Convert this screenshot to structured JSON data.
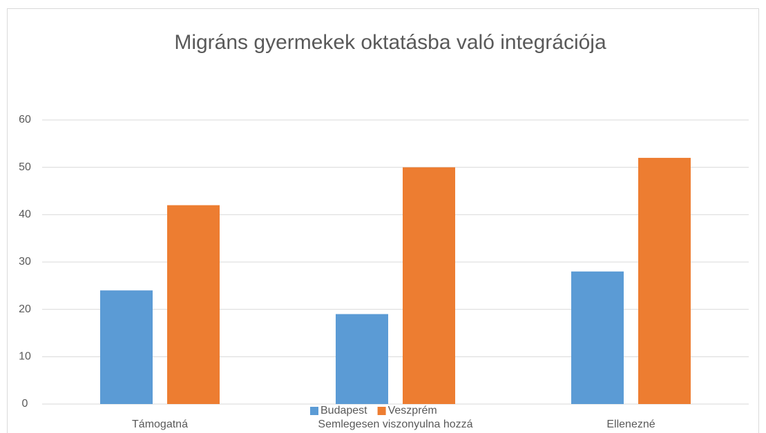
{
  "chart_data": {
    "type": "bar",
    "title": "Migráns gyermekek oktatásba való integrációja",
    "categories": [
      "Támogatná",
      "Semlegesen viszonyulna hozzá",
      "Ellenezné"
    ],
    "series": [
      {
        "name": "Budapest",
        "color": "#5b9bd5",
        "values": [
          24,
          19,
          28
        ]
      },
      {
        "name": "Veszprém",
        "color": "#ed7d31",
        "values": [
          42,
          50,
          52
        ]
      }
    ],
    "ylim": [
      0,
      60
    ],
    "yticks": [
      0,
      10,
      20,
      30,
      40,
      50,
      60
    ],
    "grid": true,
    "legend": "bottom"
  }
}
